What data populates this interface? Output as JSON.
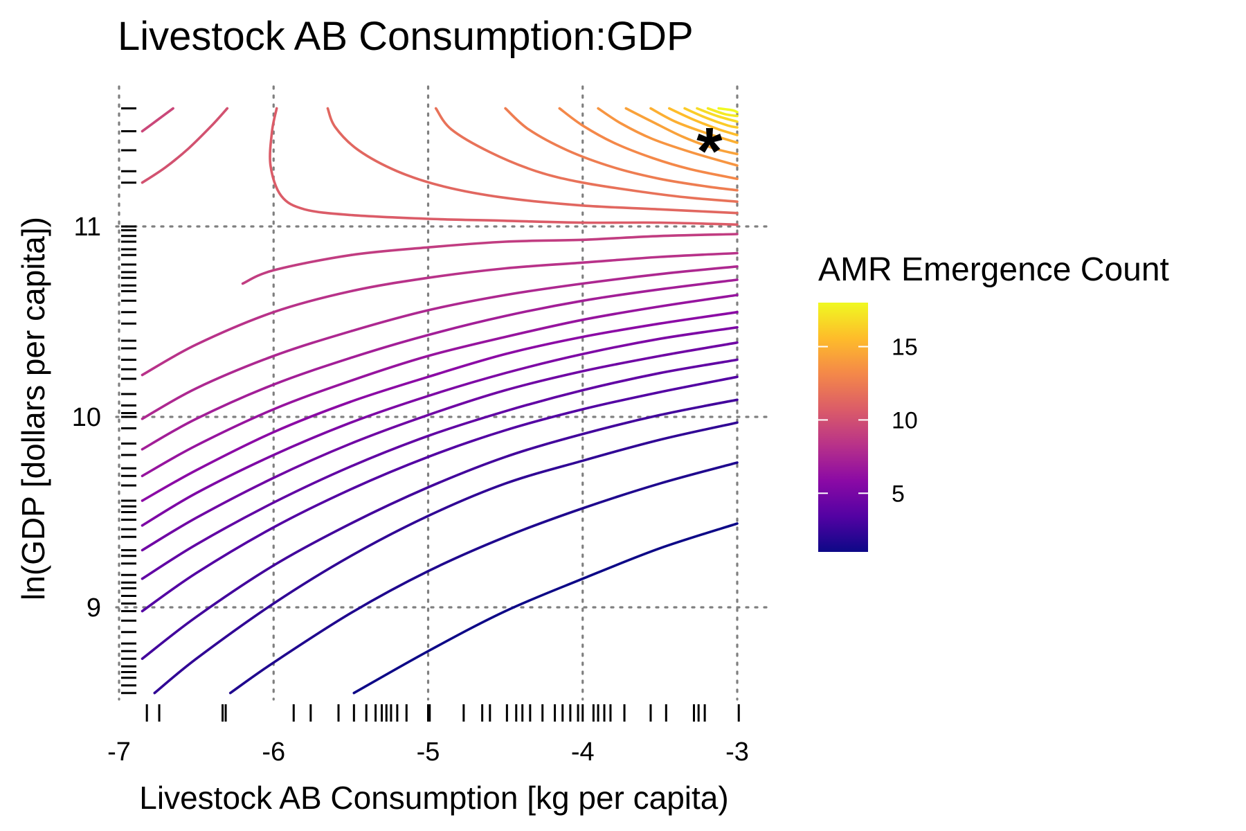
{
  "chart_data": {
    "type": "contour",
    "title": "Livestock AB Consumption:GDP",
    "xlabel": "Livestock AB Consumption [kg per capita)",
    "ylabel": "ln(GDP [dollars per capita])",
    "xlim": [
      -7,
      -3
    ],
    "ylim": [
      8.5,
      11.65
    ],
    "x_ticks": [
      -7,
      -6,
      -5,
      -4,
      -3
    ],
    "x_tick_labels": [
      "-7",
      "-6",
      "-5",
      "-4",
      "-3"
    ],
    "y_ticks": [
      9,
      10,
      11
    ],
    "y_tick_labels": [
      "9",
      "10",
      "11"
    ],
    "grid": true,
    "marker": {
      "symbol": "*",
      "x": -3.18,
      "y": 11.43
    },
    "legend": {
      "title": "AMR Emergence Count",
      "placement": "right",
      "range": [
        1,
        18
      ],
      "ticks": [
        5,
        10,
        15
      ],
      "tick_labels": [
        "5",
        "10",
        "15"
      ],
      "colors": [
        "#0d0887",
        "#5302a3",
        "#8b0aa5",
        "#b83289",
        "#db5c68",
        "#f48849",
        "#febc2a",
        "#f0f921"
      ]
    },
    "series": [
      {
        "level": 1,
        "x": [
          -5.48,
          -5.0,
          -4.5,
          -4.0,
          -3.5,
          -3.0
        ],
        "y": [
          8.55,
          8.77,
          8.98,
          9.15,
          9.31,
          9.44
        ]
      },
      {
        "level": 2,
        "x": [
          -6.28,
          -6.0,
          -5.5,
          -5.0,
          -4.5,
          -4.0,
          -3.5,
          -3.0
        ],
        "y": [
          8.55,
          8.71,
          8.97,
          9.19,
          9.37,
          9.52,
          9.65,
          9.76
        ]
      },
      {
        "level": 3,
        "x": [
          -6.77,
          -6.5,
          -6.0,
          -5.5,
          -5.0,
          -4.5,
          -4.0,
          -3.5,
          -3.0
        ],
        "y": [
          8.55,
          8.73,
          9.02,
          9.27,
          9.48,
          9.65,
          9.77,
          9.88,
          9.97
        ]
      },
      {
        "level": 4,
        "x": [
          -6.85,
          -6.5,
          -6.0,
          -5.5,
          -5.0,
          -4.5,
          -4.0,
          -3.5,
          -3.0
        ],
        "y": [
          8.73,
          8.95,
          9.22,
          9.44,
          9.63,
          9.79,
          9.91,
          10.01,
          10.09
        ]
      },
      {
        "level": 5,
        "x": [
          -6.85,
          -6.5,
          -6.0,
          -5.5,
          -5.0,
          -4.5,
          -4.0,
          -3.5,
          -3.0
        ],
        "y": [
          8.98,
          9.18,
          9.42,
          9.62,
          9.79,
          9.93,
          10.04,
          10.13,
          10.21
        ]
      },
      {
        "level": 6,
        "x": [
          -6.85,
          -6.5,
          -6.0,
          -5.5,
          -5.0,
          -4.5,
          -4.0,
          -3.5,
          -3.0
        ],
        "y": [
          9.15,
          9.33,
          9.55,
          9.74,
          9.9,
          10.03,
          10.14,
          10.23,
          10.3
        ]
      },
      {
        "level": 7,
        "x": [
          -6.85,
          -6.5,
          -6.0,
          -5.5,
          -5.0,
          -4.5,
          -4.0,
          -3.5,
          -3.0
        ],
        "y": [
          9.3,
          9.47,
          9.68,
          9.86,
          10.01,
          10.14,
          10.24,
          10.32,
          10.39
        ]
      },
      {
        "level": 8,
        "x": [
          -6.85,
          -6.5,
          -6.0,
          -5.5,
          -5.0,
          -4.5,
          -4.0,
          -3.5,
          -3.0
        ],
        "y": [
          9.43,
          9.6,
          9.8,
          9.97,
          10.11,
          10.23,
          10.33,
          10.41,
          10.47
        ]
      },
      {
        "level": 9,
        "x": [
          -6.85,
          -6.5,
          -6.0,
          -5.5,
          -5.0,
          -4.5,
          -4.0,
          -3.5,
          -3.0
        ],
        "y": [
          9.56,
          9.72,
          9.92,
          10.08,
          10.21,
          10.33,
          10.42,
          10.49,
          10.55
        ]
      },
      {
        "level": 10,
        "x": [
          -6.85,
          -6.5,
          -6.0,
          -5.5,
          -5.0,
          -4.5,
          -4.0,
          -3.5,
          -3.0
        ],
        "y": [
          9.69,
          9.85,
          10.04,
          10.19,
          10.32,
          10.42,
          10.51,
          10.58,
          10.64
        ]
      },
      {
        "level": 11,
        "x": [
          -6.85,
          -6.5,
          -6.0,
          -5.5,
          -5.0,
          -4.5,
          -4.0,
          -3.5,
          -3.0
        ],
        "y": [
          9.83,
          9.99,
          10.17,
          10.31,
          10.43,
          10.53,
          10.61,
          10.67,
          10.72
        ]
      },
      {
        "level": 12,
        "x": [
          -6.85,
          -6.5,
          -6.0,
          -5.5,
          -5.0,
          -4.5,
          -4.0,
          -3.5,
          -3.0
        ],
        "y": [
          9.99,
          10.15,
          10.32,
          10.45,
          10.56,
          10.64,
          10.7,
          10.75,
          10.79
        ]
      },
      {
        "level": 13,
        "x": [
          -6.85,
          -6.5,
          -6.0,
          -5.5,
          -5.0,
          -4.5,
          -4.0,
          -3.5,
          -3.0
        ],
        "y": [
          10.22,
          10.38,
          10.55,
          10.66,
          10.73,
          10.78,
          10.81,
          10.84,
          10.86
        ]
      },
      {
        "level": 14,
        "x": [
          -6.2,
          -6.0,
          -5.5,
          -5.0,
          -4.5,
          -4.0,
          -3.5,
          -3.0
        ],
        "y": [
          10.7,
          10.77,
          10.85,
          10.89,
          10.92,
          10.93,
          10.95,
          10.96
        ]
      },
      {
        "level": 15,
        "x": [
          -6.85,
          -6.75,
          -6.65
        ],
        "y": [
          11.5,
          11.56,
          11.62
        ]
      },
      {
        "level": 16,
        "x": [
          -6.85,
          -6.7,
          -6.55,
          -6.4,
          -6.3
        ],
        "y": [
          11.23,
          11.31,
          11.41,
          11.53,
          11.62
        ]
      },
      {
        "level": 17,
        "x": [
          -5.98,
          -6.01,
          -6.02,
          -5.95,
          -5.8,
          -5.5,
          -5.0,
          -4.5,
          -4.0,
          -3.5,
          -3.0
        ],
        "y": [
          11.62,
          11.5,
          11.32,
          11.16,
          11.09,
          11.06,
          11.04,
          11.03,
          11.02,
          11.02,
          11.01
        ]
      },
      {
        "level": 18,
        "x": [
          -5.65,
          -5.6,
          -5.45,
          -5.2,
          -4.9,
          -4.5,
          -4.0,
          -3.5,
          -3.0
        ],
        "y": [
          11.62,
          11.52,
          11.4,
          11.29,
          11.21,
          11.15,
          11.11,
          11.09,
          11.07
        ]
      },
      {
        "level": 19,
        "x": [
          -4.95,
          -4.85,
          -4.6,
          -4.3,
          -4.0,
          -3.6,
          -3.3,
          -3.0
        ],
        "y": [
          11.62,
          11.51,
          11.39,
          11.29,
          11.23,
          11.18,
          11.15,
          11.13
        ]
      },
      {
        "level": 20,
        "x": [
          -4.5,
          -4.35,
          -4.1,
          -3.8,
          -3.5,
          -3.2,
          -3.0
        ],
        "y": [
          11.62,
          11.51,
          11.4,
          11.31,
          11.25,
          11.21,
          11.19
        ]
      },
      {
        "level": 21,
        "x": [
          -4.15,
          -4.0,
          -3.8,
          -3.55,
          -3.3,
          -3.0
        ],
        "y": [
          11.62,
          11.53,
          11.44,
          11.36,
          11.3,
          11.25
        ]
      },
      {
        "level": 22,
        "x": [
          -3.9,
          -3.75,
          -3.55,
          -3.3,
          -3.0
        ],
        "y": [
          11.62,
          11.54,
          11.46,
          11.39,
          11.32
        ]
      },
      {
        "level": 23,
        "x": [
          -3.72,
          -3.55,
          -3.35,
          -3.15,
          -3.0
        ],
        "y": [
          11.62,
          11.55,
          11.47,
          11.41,
          11.38
        ]
      },
      {
        "level": 24,
        "x": [
          -3.56,
          -3.4,
          -3.2,
          -3.0
        ],
        "y": [
          11.62,
          11.55,
          11.49,
          11.44
        ]
      },
      {
        "level": 25,
        "x": [
          -3.44,
          -3.28,
          -3.12,
          -3.0
        ],
        "y": [
          11.62,
          11.56,
          11.51,
          11.48
        ]
      },
      {
        "level": 26,
        "x": [
          -3.34,
          -3.2,
          -3.06,
          -3.0
        ],
        "y": [
          11.62,
          11.57,
          11.53,
          11.52
        ]
      },
      {
        "level": 27,
        "x": [
          -3.26,
          -3.13,
          -3.0
        ],
        "y": [
          11.62,
          11.58,
          11.55
        ]
      },
      {
        "level": 28,
        "x": [
          -3.19,
          -3.08,
          -3.0
        ],
        "y": [
          11.62,
          11.59,
          11.58
        ]
      },
      {
        "level": 29,
        "x": [
          -3.12,
          -3.03,
          -3.0
        ],
        "y": [
          11.62,
          11.61,
          11.6
        ]
      }
    ],
    "rug_x": [
      -6.82,
      -6.74,
      -6.33,
      -6.31,
      -5.87,
      -5.76,
      -5.58,
      -5.48,
      -5.4,
      -5.34,
      -5.3,
      -5.27,
      -5.24,
      -5.2,
      -5.14,
      -5.0,
      -4.99,
      -4.77,
      -4.65,
      -4.6,
      -4.49,
      -4.43,
      -4.39,
      -4.34,
      -4.26,
      -4.18,
      -4.13,
      -4.08,
      -4.03,
      -4.0,
      -3.93,
      -3.9,
      -3.86,
      -3.82,
      -3.73,
      -3.56,
      -3.46,
      -3.28,
      -3.25,
      -3.21,
      -2.99
    ],
    "rug_y": [
      11.62,
      11.5,
      11.4,
      11.29,
      11.23,
      11.0,
      10.98,
      10.95,
      10.92,
      10.88,
      10.85,
      10.8,
      10.76,
      10.73,
      10.69,
      10.66,
      10.61,
      10.55,
      10.49,
      10.4,
      10.36,
      10.3,
      10.25,
      10.2,
      10.12,
      10.06,
      10.02,
      10.0,
      9.94,
      9.86,
      9.8,
      9.73,
      9.69,
      9.64,
      9.56,
      9.53,
      9.5,
      9.46,
      9.41,
      9.37,
      9.3,
      9.27,
      9.23,
      9.17,
      9.13,
      9.1,
      9.06,
      9.02,
      8.98,
      8.93,
      8.87,
      8.81,
      8.77,
      8.73,
      8.69,
      8.66,
      8.63,
      8.59,
      8.55
    ]
  }
}
